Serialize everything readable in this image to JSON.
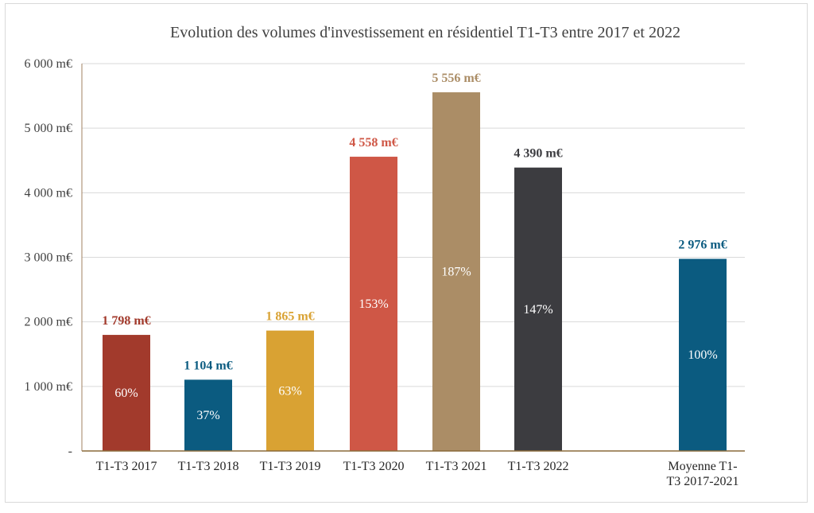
{
  "chart_data": {
    "type": "bar",
    "title": "Evolution des volumes d'investissement en résidentiel T1-T3 entre 2017 et 2022",
    "xlabel": "",
    "ylabel": "",
    "ylim": [
      0,
      6000
    ],
    "yticks": [
      {
        "value": 0,
        "label": "-"
      },
      {
        "value": 1000,
        "label": "1 000 m€"
      },
      {
        "value": 2000,
        "label": "2 000 m€"
      },
      {
        "value": 3000,
        "label": "3 000 m€"
      },
      {
        "value": 4000,
        "label": "4 000 m€"
      },
      {
        "value": 5000,
        "label": "5 000 m€"
      },
      {
        "value": 6000,
        "label": "6 000 m€"
      }
    ],
    "grid": true,
    "legend": "none",
    "bars": [
      {
        "category": "T1-T3 2017",
        "value": 1798,
        "value_label": "1 798 m€",
        "pct_label": "60%",
        "color": "#a23a2c"
      },
      {
        "category": "T1-T3 2018",
        "value": 1104,
        "value_label": "1 104 m€",
        "pct_label": "37%",
        "color": "#0b5b80"
      },
      {
        "category": "T1-T3 2019",
        "value": 1865,
        "value_label": "1 865 m€",
        "pct_label": "63%",
        "color": "#d9a233"
      },
      {
        "category": "T1-T3 2020",
        "value": 4558,
        "value_label": "4 558 m€",
        "pct_label": "153%",
        "color": "#cf5746"
      },
      {
        "category": "T1-T3 2021",
        "value": 5556,
        "value_label": "5 556 m€",
        "pct_label": "187%",
        "color": "#ab8d66"
      },
      {
        "category": "T1-T3 2022",
        "value": 4390,
        "value_label": "4 390 m€",
        "pct_label": "147%",
        "color": "#3c3c40"
      },
      {
        "category": "Moyenne T1-T3 2017-2021",
        "category_lines": [
          "Moyenne T1-",
          "T3 2017-2021"
        ],
        "value": 2976,
        "value_label": "2 976 m€",
        "pct_label": "100%",
        "color": "#0b5b80"
      }
    ]
  }
}
